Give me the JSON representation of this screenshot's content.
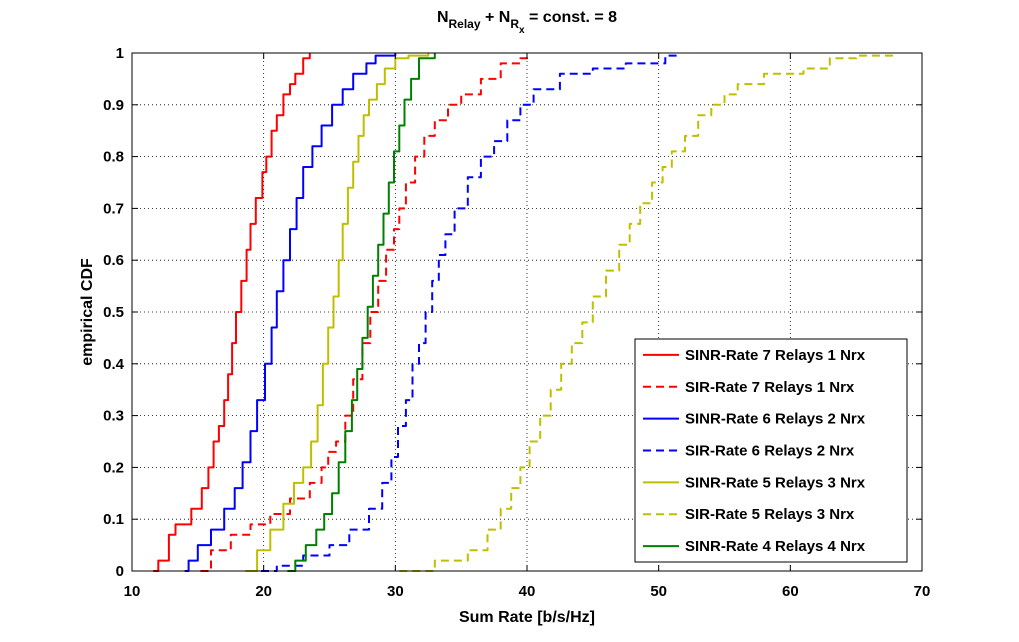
{
  "chart_data": {
    "type": "line",
    "title": {
      "base1": "N",
      "sub1": "Relay",
      "mid": " + N",
      "sub2": "R",
      "subsub2": "x",
      "rest": " = const. = 8"
    },
    "xlabel": "Sum Rate [b/s/Hz]",
    "ylabel": "empirical CDF",
    "xlim": [
      10,
      70
    ],
    "ylim": [
      0,
      1
    ],
    "xticks": [
      "10",
      "20",
      "30",
      "40",
      "50",
      "60",
      "70"
    ],
    "yticks": [
      "0",
      "0.1",
      "0.2",
      "0.3",
      "0.4",
      "0.5",
      "0.6",
      "0.7",
      "0.8",
      "0.9",
      "1"
    ],
    "grid": true,
    "legend_position": "bottom-right",
    "series": [
      {
        "name": "SINR-Rate 7 Relays 1 Nrx",
        "color": "#ff0000",
        "dash": "solid",
        "x": [
          11.6,
          12.0,
          12.8,
          13.3,
          14.5,
          15.3,
          15.8,
          16.2,
          16.6,
          17.0,
          17.3,
          17.6,
          17.9,
          18.3,
          18.7,
          19.0,
          19.4,
          19.9,
          20.2,
          20.6,
          21.0,
          21.5,
          22.0,
          22.4,
          23.0,
          23.5
        ],
        "y": [
          0.0,
          0.02,
          0.07,
          0.09,
          0.12,
          0.16,
          0.2,
          0.25,
          0.28,
          0.33,
          0.38,
          0.44,
          0.5,
          0.56,
          0.62,
          0.67,
          0.72,
          0.77,
          0.8,
          0.85,
          0.88,
          0.92,
          0.94,
          0.96,
          0.99,
          1.0
        ]
      },
      {
        "name": "SIR-Rate 7 Relays 1 Nrx",
        "color": "#ff0000",
        "dash": "dashed",
        "x": [
          15.2,
          16.0,
          17.5,
          19.0,
          20.5,
          22.0,
          23.5,
          24.4,
          24.9,
          25.5,
          26.2,
          26.8,
          27.5,
          28.1,
          28.7,
          29.3,
          29.9,
          30.3,
          30.8,
          31.5,
          32.2,
          33.0,
          34.0,
          35.0,
          36.5,
          38.0,
          39.5,
          40.0
        ],
        "y": [
          0.0,
          0.04,
          0.07,
          0.09,
          0.11,
          0.14,
          0.17,
          0.2,
          0.23,
          0.25,
          0.3,
          0.37,
          0.44,
          0.5,
          0.56,
          0.62,
          0.66,
          0.7,
          0.75,
          0.8,
          0.84,
          0.87,
          0.9,
          0.92,
          0.95,
          0.98,
          0.99,
          1.0
        ]
      },
      {
        "name": "SINR-Rate 6 Relays 2 Nrx",
        "color": "#0000ff",
        "dash": "solid",
        "x": [
          14.0,
          14.3,
          15.0,
          16.0,
          17.0,
          17.8,
          18.4,
          19.0,
          19.5,
          20.1,
          20.6,
          21.0,
          21.5,
          22.0,
          22.5,
          23.0,
          23.7,
          24.4,
          25.2,
          26.0,
          26.8,
          27.8,
          28.5,
          30.0
        ],
        "y": [
          0.0,
          0.02,
          0.05,
          0.08,
          0.12,
          0.16,
          0.21,
          0.27,
          0.33,
          0.4,
          0.47,
          0.54,
          0.6,
          0.66,
          0.72,
          0.78,
          0.82,
          0.86,
          0.9,
          0.93,
          0.96,
          0.98,
          0.995,
          1.0
        ]
      },
      {
        "name": "SIR-Rate 6 Relays 2 Nrx",
        "color": "#0000ff",
        "dash": "dashed",
        "x": [
          19.8,
          21.0,
          23.0,
          25.0,
          26.5,
          28.0,
          29.0,
          29.7,
          30.2,
          30.8,
          31.3,
          31.8,
          32.3,
          32.8,
          33.3,
          33.8,
          34.5,
          35.5,
          36.5,
          37.5,
          38.5,
          39.5,
          40.5,
          42.5,
          45.0,
          47.5,
          50.5,
          51.5
        ],
        "y": [
          0.0,
          0.01,
          0.03,
          0.05,
          0.08,
          0.12,
          0.17,
          0.22,
          0.28,
          0.33,
          0.4,
          0.44,
          0.5,
          0.56,
          0.61,
          0.65,
          0.7,
          0.76,
          0.8,
          0.83,
          0.87,
          0.9,
          0.93,
          0.96,
          0.97,
          0.98,
          0.995,
          1.0
        ]
      },
      {
        "name": "SINR-Rate 5 Relays 3 Nrx",
        "color": "#bfbf00",
        "dash": "solid",
        "x": [
          18.6,
          19.5,
          20.5,
          21.5,
          22.3,
          23.0,
          23.6,
          24.1,
          24.5,
          24.9,
          25.3,
          25.7,
          26.0,
          26.4,
          26.8,
          27.2,
          27.6,
          28.0,
          28.6,
          29.2,
          30.0,
          31.0,
          32.5
        ],
        "y": [
          0.0,
          0.04,
          0.08,
          0.13,
          0.17,
          0.2,
          0.25,
          0.32,
          0.4,
          0.47,
          0.53,
          0.6,
          0.67,
          0.74,
          0.79,
          0.84,
          0.88,
          0.91,
          0.94,
          0.97,
          0.99,
          0.995,
          1.0
        ]
      },
      {
        "name": "SIR-Rate 5 Relays 3 Nrx",
        "color": "#bfbf00",
        "dash": "dashed",
        "x": [
          30.3,
          33.0,
          35.5,
          37.0,
          38.0,
          38.8,
          39.5,
          40.2,
          41.0,
          41.8,
          42.6,
          43.4,
          44.2,
          45.0,
          46.0,
          47.0,
          47.8,
          48.6,
          49.5,
          50.3,
          51.0,
          52.0,
          53.0,
          54.0,
          55.0,
          56.0,
          58.0,
          61.0,
          63.0,
          65.0,
          68.0
        ],
        "y": [
          0.0,
          0.02,
          0.04,
          0.08,
          0.12,
          0.16,
          0.2,
          0.25,
          0.3,
          0.35,
          0.4,
          0.44,
          0.48,
          0.53,
          0.58,
          0.63,
          0.67,
          0.71,
          0.75,
          0.78,
          0.81,
          0.84,
          0.88,
          0.9,
          0.92,
          0.94,
          0.96,
          0.97,
          0.99,
          0.995,
          1.0
        ]
      },
      {
        "name": "SINR-Rate 4 Relays 4 Nrx",
        "color": "#008000",
        "dash": "solid",
        "x": [
          21.8,
          22.4,
          23.2,
          24.0,
          24.6,
          25.2,
          25.7,
          26.2,
          26.7,
          27.1,
          27.5,
          27.9,
          28.3,
          28.7,
          29.1,
          29.5,
          29.9,
          30.3,
          30.7,
          31.2,
          31.8,
          33.0
        ],
        "y": [
          0.0,
          0.02,
          0.05,
          0.08,
          0.11,
          0.15,
          0.21,
          0.27,
          0.33,
          0.39,
          0.45,
          0.51,
          0.57,
          0.63,
          0.69,
          0.75,
          0.81,
          0.86,
          0.91,
          0.95,
          0.99,
          1.0
        ]
      }
    ]
  }
}
